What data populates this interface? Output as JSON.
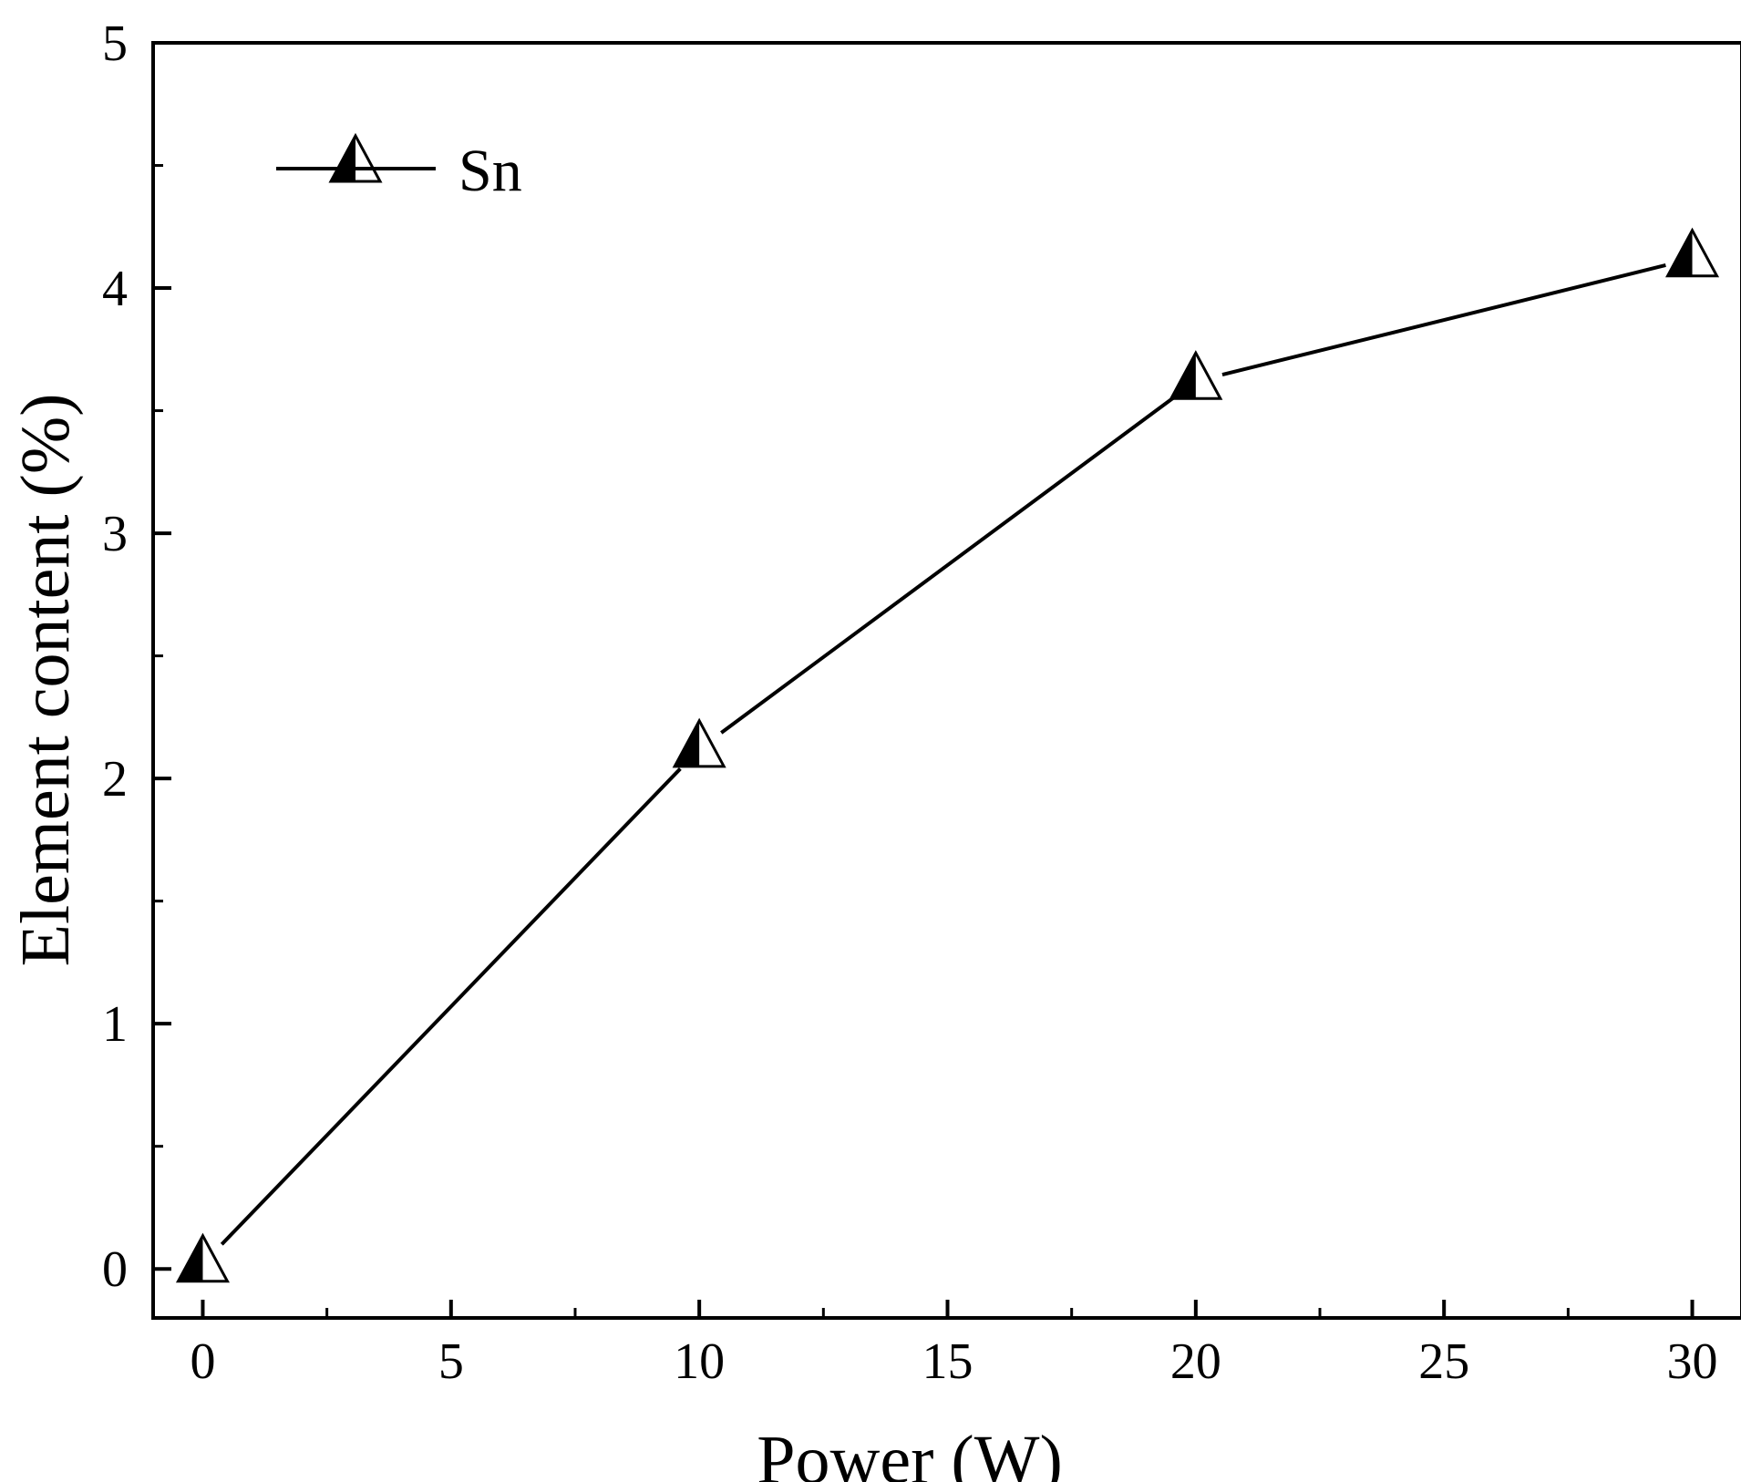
{
  "chart_data": {
    "type": "line",
    "title": "",
    "xlabel": "Power (W)",
    "ylabel": "Element content (%)",
    "xlim": [
      -1,
      31
    ],
    "ylim": [
      -0.2,
      5
    ],
    "x_ticks": [
      0,
      5,
      10,
      15,
      20,
      25,
      30
    ],
    "x_minor_ticks": [
      2.5,
      7.5,
      12.5,
      17.5,
      22.5,
      27.5
    ],
    "y_ticks": [
      0,
      1,
      2,
      3,
      4,
      5
    ],
    "y_minor_ticks": [
      0.5,
      1.5,
      2.5,
      3.5,
      4.5
    ],
    "grid": false,
    "legend_position": "top-left",
    "series": [
      {
        "name": "Sn",
        "marker": "half-filled-triangle",
        "color": "#000000",
        "x": [
          0,
          10,
          20,
          30
        ],
        "y": [
          0.02,
          2.12,
          3.62,
          4.12
        ]
      }
    ]
  }
}
